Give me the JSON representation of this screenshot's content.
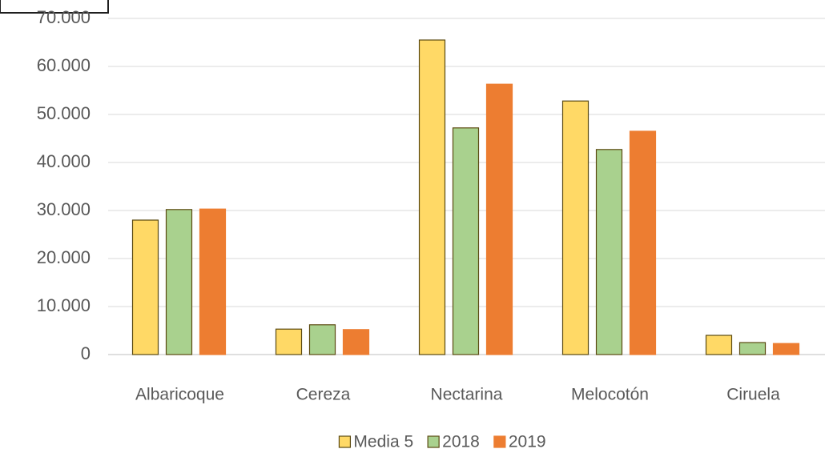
{
  "chart_data": {
    "type": "bar",
    "categories": [
      "Albaricoque",
      "Cereza",
      "Nectarina",
      "Melocotón",
      "Ciruela"
    ],
    "series": [
      {
        "name": "Media 5",
        "color": "#ffd966",
        "edgecolor": "#5b4a12",
        "values": [
          28000,
          5300,
          65500,
          52800,
          4000
        ]
      },
      {
        "name": "2018",
        "color": "#a9d18e",
        "edgecolor": "#5b4a12",
        "values": [
          30200,
          6200,
          47200,
          42700,
          2500
        ]
      },
      {
        "name": "2019",
        "color": "#ed7d31",
        "edgecolor": "#ed7d31",
        "values": [
          30300,
          5200,
          56300,
          46500,
          2300
        ]
      }
    ],
    "ylim": [
      0,
      70000
    ],
    "yticks": [
      0,
      {
        "value": 10000,
        "label": "10.000"
      },
      {
        "value": 20000,
        "label": "20.000"
      },
      {
        "value": 30000,
        "label": "30.000"
      },
      {
        "value": 40000,
        "label": "40.000"
      },
      {
        "value": 50000,
        "label": "50.000"
      },
      {
        "value": 60000,
        "label": "60.000"
      },
      {
        "value": 70000,
        "label": "70.000"
      }
    ],
    "grid": true,
    "legend": "bottom"
  }
}
